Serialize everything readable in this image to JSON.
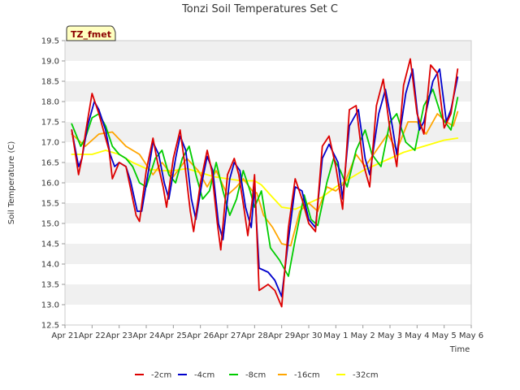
{
  "chart_data": {
    "type": "line",
    "title": "Tonzi Soil Temperatures Set C",
    "xlabel": "Time",
    "ylabel": "Soil Temperature (C)",
    "badge": "TZ_fmet",
    "x_ticks": [
      "Apr 21",
      "Apr 22",
      "Apr 23",
      "Apr 24",
      "Apr 25",
      "Apr 26",
      "Apr 27",
      "Apr 28",
      "Apr 29",
      "Apr 30",
      "May 1",
      "May 2",
      "May 3",
      "May 4",
      "May 5",
      "May 6"
    ],
    "y_ticks": [
      "12.5",
      "13.0",
      "13.5",
      "14.0",
      "14.5",
      "15.0",
      "15.5",
      "16.0",
      "16.5",
      "17.0",
      "17.5",
      "18.0",
      "18.5",
      "19.0",
      "19.5"
    ],
    "xlim": [
      "2023-04-21",
      "2023-05-06"
    ],
    "ylim": [
      12.5,
      19.5
    ],
    "grid": "horizontal bands",
    "legend_position": "bottom",
    "series": [
      {
        "name": "-2cm",
        "color": "#dd0000",
        "x": [
          "04-21 06:00",
          "04-21 12:00",
          "04-21 15:00",
          "04-21 18:00",
          "04-22 00:00",
          "04-22 06:00",
          "04-22 09:00",
          "04-22 15:00",
          "04-22 18:00",
          "04-23 00:00",
          "04-23 06:00",
          "04-23 09:00",
          "04-23 15:00",
          "04-23 18:00",
          "04-24 00:00",
          "04-24 06:00",
          "04-24 10:00",
          "04-24 15:00",
          "04-24 18:00",
          "04-25 00:00",
          "04-25 06:00",
          "04-25 10:00",
          "04-25 15:00",
          "04-25 18:00",
          "04-26 00:00",
          "04-26 06:00",
          "04-26 10:00",
          "04-26 15:00",
          "04-26 18:00",
          "04-27 00:00",
          "04-27 06:00",
          "04-27 10:00",
          "04-27 15:00",
          "04-27 18:00",
          "04-27 22:00",
          "04-28 00:00",
          "04-28 04:00",
          "04-28 12:00",
          "04-28 18:00",
          "04-29 00:00",
          "04-29 06:00",
          "04-29 12:00",
          "04-29 18:00",
          "04-30 00:00",
          "04-30 06:00",
          "04-30 12:00",
          "04-30 18:00",
          "05-01 00:00",
          "05-01 06:00",
          "05-01 12:00",
          "05-01 18:00",
          "05-02 00:00",
          "05-02 06:00",
          "05-02 12:00",
          "05-02 18:00",
          "05-03 00:00",
          "05-03 06:00",
          "05-03 12:00",
          "05-03 18:00",
          "05-04 00:00",
          "05-04 06:00",
          "05-04 12:00",
          "05-04 18:00",
          "05-05 00:00",
          "05-05 06:00",
          "05-05 12:00"
        ],
        "values": [
          17.3,
          16.2,
          16.6,
          17.2,
          18.2,
          17.7,
          17.4,
          16.8,
          16.1,
          16.5,
          16.4,
          16.0,
          15.2,
          15.05,
          16.3,
          17.1,
          16.5,
          15.9,
          15.4,
          16.6,
          17.3,
          16.5,
          15.3,
          14.8,
          16.0,
          16.8,
          16.3,
          15.0,
          14.35,
          16.2,
          16.6,
          16.2,
          15.3,
          14.7,
          15.6,
          16.2,
          13.35,
          13.5,
          13.35,
          12.95,
          14.9,
          16.1,
          15.6,
          15.0,
          14.8,
          16.9,
          17.15,
          16.4,
          15.35,
          17.8,
          17.9,
          16.5,
          15.9,
          17.9,
          18.55,
          17.3,
          16.4,
          18.4,
          19.05,
          17.7,
          17.2,
          18.9,
          18.7,
          17.35,
          17.7,
          18.8
        ]
      },
      {
        "name": "-4cm",
        "color": "#0000cc",
        "x": [
          "04-21 06:00",
          "04-21 12:00",
          "04-21 15:00",
          "04-21 20:00",
          "04-22 02:00",
          "04-22 06:00",
          "04-22 12:00",
          "04-22 16:00",
          "04-22 20:00",
          "04-23 00:00",
          "04-23 06:00",
          "04-23 10:00",
          "04-23 16:00",
          "04-23 20:00",
          "04-24 02:00",
          "04-24 06:00",
          "04-24 11:00",
          "04-24 16:00",
          "04-24 20:00",
          "04-25 02:00",
          "04-25 06:00",
          "04-25 11:00",
          "04-25 16:00",
          "04-25 20:00",
          "04-26 02:00",
          "04-26 06:00",
          "04-26 11:00",
          "04-26 16:00",
          "04-26 20:00",
          "04-27 02:00",
          "04-27 06:00",
          "04-27 11:00",
          "04-27 16:00",
          "04-27 21:00",
          "04-28 00:00",
          "04-28 04:00",
          "04-28 12:00",
          "04-28 18:00",
          "04-29 00:00",
          "04-29 06:00",
          "04-29 12:00",
          "04-29 18:00",
          "04-30 00:00",
          "04-30 06:00",
          "04-30 12:00",
          "04-30 18:00",
          "05-01 02:00",
          "05-01 06:00",
          "05-01 12:00",
          "05-01 20:00",
          "05-02 02:00",
          "05-02 06:00",
          "05-02 14:00",
          "05-02 20:00",
          "05-03 02:00",
          "05-03 06:00",
          "05-03 14:00",
          "05-03 20:00",
          "05-04 02:00",
          "05-04 06:00",
          "05-04 14:00",
          "05-04 20:00",
          "05-05 02:00",
          "05-05 06:00",
          "05-05 12:00"
        ],
        "values": [
          17.3,
          16.4,
          16.6,
          17.4,
          18.0,
          17.8,
          17.3,
          16.7,
          16.4,
          16.5,
          16.4,
          16.05,
          15.3,
          15.3,
          16.3,
          17.0,
          16.7,
          16.0,
          15.6,
          16.6,
          17.15,
          16.8,
          15.6,
          15.1,
          16.1,
          16.65,
          16.3,
          15.0,
          14.6,
          16.1,
          16.5,
          16.3,
          15.4,
          14.9,
          15.9,
          13.9,
          13.8,
          13.6,
          13.2,
          14.6,
          15.9,
          15.8,
          15.1,
          14.9,
          16.6,
          16.95,
          16.5,
          15.6,
          17.4,
          17.8,
          16.6,
          16.2,
          17.7,
          18.3,
          17.4,
          16.7,
          18.2,
          18.8,
          17.3,
          17.5,
          18.5,
          18.8,
          17.5,
          17.8,
          18.6
        ]
      },
      {
        "name": "-8cm",
        "color": "#00cc00",
        "x": [
          "04-21 06:00",
          "04-21 14:00",
          "04-21 18:00",
          "04-22 00:00",
          "04-22 06:00",
          "04-22 12:00",
          "04-22 18:00",
          "04-23 00:00",
          "04-23 06:00",
          "04-23 12:00",
          "04-23 18:00",
          "04-24 00:00",
          "04-24 08:00",
          "04-24 14:00",
          "04-24 20:00",
          "04-25 02:00",
          "04-25 08:00",
          "04-25 14:00",
          "04-25 20:00",
          "04-26 02:00",
          "04-26 08:00",
          "04-26 14:00",
          "04-26 20:00",
          "04-27 02:00",
          "04-27 08:00",
          "04-27 14:00",
          "04-27 20:00",
          "04-28 00:00",
          "04-28 06:00",
          "04-28 14:00",
          "04-28 22:00",
          "04-29 06:00",
          "04-29 12:00",
          "04-29 20:00",
          "04-30 02:00",
          "04-30 08:00",
          "04-30 16:00",
          "04-30 22:00",
          "05-01 04:00",
          "05-01 10:00",
          "05-01 18:00",
          "05-02 02:00",
          "05-02 08:00",
          "05-02 16:00",
          "05-03 00:00",
          "05-03 06:00",
          "05-03 14:00",
          "05-03 22:00",
          "05-04 06:00",
          "05-04 14:00",
          "05-04 22:00",
          "05-05 06:00",
          "05-05 12:00"
        ],
        "values": [
          17.45,
          16.9,
          17.1,
          17.6,
          17.7,
          17.4,
          16.9,
          16.7,
          16.6,
          16.4,
          16.0,
          15.9,
          16.6,
          16.8,
          16.2,
          16.0,
          16.6,
          16.9,
          16.2,
          15.6,
          15.8,
          16.5,
          15.8,
          15.2,
          15.6,
          16.3,
          15.8,
          15.4,
          15.8,
          14.4,
          14.1,
          13.7,
          14.6,
          15.7,
          15.1,
          14.95,
          16.0,
          16.6,
          16.3,
          15.9,
          16.8,
          17.3,
          16.7,
          16.4,
          17.5,
          17.7,
          17.0,
          16.8,
          17.9,
          18.3,
          17.6,
          17.3,
          18.1
        ]
      },
      {
        "name": "-16cm",
        "color": "#ffa500",
        "x": [
          "04-21 06:00",
          "04-21 18:00",
          "04-22 06:00",
          "04-22 18:00",
          "04-23 06:00",
          "04-23 18:00",
          "04-24 06:00",
          "04-24 14:00",
          "04-25 00:00",
          "04-25 12:00",
          "04-25 22:00",
          "04-26 06:00",
          "04-26 14:00",
          "04-27 00:00",
          "04-27 08:00",
          "04-27 14:00",
          "04-27 22:00",
          "04-28 02:00",
          "04-28 08:00",
          "04-28 16:00",
          "04-29 00:00",
          "04-29 08:00",
          "04-29 16:00",
          "04-30 00:00",
          "04-30 08:00",
          "04-30 16:00",
          "05-01 00:00",
          "05-01 08:00",
          "05-01 18:00",
          "05-02 02:00",
          "05-02 12:00",
          "05-02 22:00",
          "05-03 06:00",
          "05-03 16:00",
          "05-04 00:00",
          "05-04 08:00",
          "05-04 18:00",
          "05-05 02:00",
          "05-05 08:00",
          "05-05 12:00"
        ],
        "values": [
          17.2,
          16.9,
          17.2,
          17.25,
          16.9,
          16.7,
          16.2,
          16.5,
          16.15,
          16.6,
          16.3,
          15.9,
          16.3,
          15.7,
          15.9,
          16.1,
          15.8,
          15.75,
          15.2,
          14.9,
          14.5,
          14.45,
          15.3,
          15.5,
          15.3,
          15.9,
          15.8,
          16.0,
          16.7,
          16.4,
          16.8,
          17.2,
          16.8,
          17.5,
          17.5,
          17.2,
          17.7,
          17.5,
          17.4,
          17.75
        ]
      },
      {
        "name": "-32cm",
        "color": "#ffff00",
        "x": [
          "04-21 06:00",
          "04-22 00:00",
          "04-22 12:00",
          "04-23 00:00",
          "04-23 12:00",
          "04-24 00:00",
          "04-24 12:00",
          "04-25 00:00",
          "04-25 12:00",
          "04-26 00:00",
          "04-26 12:00",
          "04-27 00:00",
          "04-27 12:00",
          "04-28 00:00",
          "04-28 06:00",
          "04-28 14:00",
          "04-29 00:00",
          "04-29 12:00",
          "04-30 00:00",
          "04-30 12:00",
          "05-01 00:00",
          "05-01 12:00",
          "05-02 00:00",
          "05-02 12:00",
          "05-03 00:00",
          "05-03 12:00",
          "05-04 00:00",
          "05-04 12:00",
          "05-05 00:00",
          "05-05 12:00"
        ],
        "values": [
          16.7,
          16.7,
          16.8,
          16.7,
          16.5,
          16.35,
          16.3,
          16.3,
          16.35,
          16.25,
          16.15,
          16.1,
          16.05,
          16.05,
          15.95,
          15.7,
          15.4,
          15.35,
          15.5,
          15.65,
          15.9,
          16.1,
          16.3,
          16.45,
          16.6,
          16.75,
          16.85,
          16.95,
          17.05,
          17.1
        ]
      }
    ]
  }
}
